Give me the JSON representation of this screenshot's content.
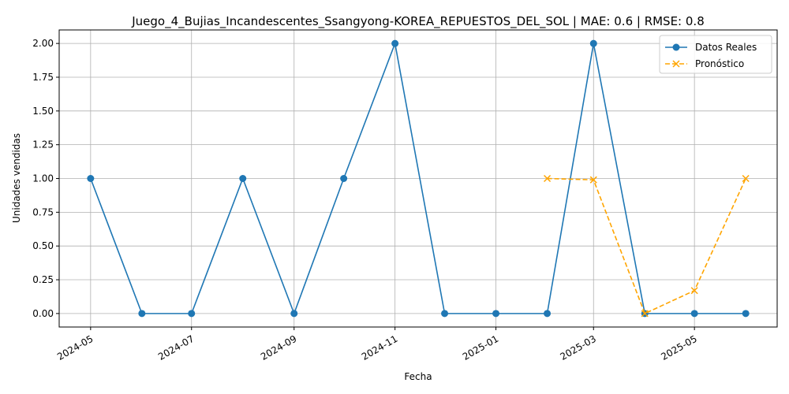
{
  "chart_data": {
    "type": "line",
    "title": "Juego_4_Bujias_Incandescentes_Ssangyong-KOREA_REPUESTOS_DEL_SOL | MAE: 0.6 | RMSE: 0.8",
    "xlabel": "Fecha",
    "ylabel": "Unidades vendidas",
    "ylim": [
      -0.1,
      2.1
    ],
    "grid": true,
    "legend_position": "top-right",
    "x_ticks": [
      "2024-05",
      "2024-07",
      "2024-09",
      "2024-11",
      "2025-01",
      "2025-03",
      "2025-05"
    ],
    "y_ticks": [
      "0.00",
      "0.25",
      "0.50",
      "0.75",
      "1.00",
      "1.25",
      "1.50",
      "1.75",
      "2.00"
    ],
    "series": [
      {
        "name": "Datos Reales",
        "color": "#1f77b4",
        "line_style": "solid",
        "marker": "circle",
        "x": [
          "2024-05-01",
          "2024-06-01",
          "2024-07-01",
          "2024-08-01",
          "2024-09-01",
          "2024-10-01",
          "2024-11-01",
          "2024-12-01",
          "2025-01-01",
          "2025-02-01",
          "2025-03-01",
          "2025-04-01",
          "2025-05-01",
          "2025-06-01"
        ],
        "values": [
          1,
          0,
          0,
          1,
          0,
          1,
          2,
          0,
          0,
          0,
          2,
          0,
          0,
          0
        ]
      },
      {
        "name": "Pronóstico",
        "color": "#ffa500",
        "line_style": "dashed",
        "marker": "x",
        "x": [
          "2025-02-01",
          "2025-03-01",
          "2025-04-01",
          "2025-05-01",
          "2025-06-01"
        ],
        "values": [
          1.0,
          0.99,
          0.0,
          0.17,
          1.0
        ]
      }
    ]
  }
}
